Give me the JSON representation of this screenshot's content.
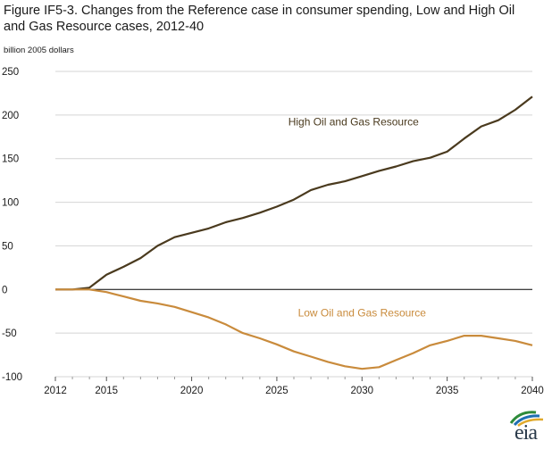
{
  "title": "Figure IF5-3. Changes from the Reference case in consumer spending, Low and High Oil and Gas Resource cases, 2012-40",
  "units": "billion 2005 dollars",
  "logo_text": "eia",
  "chart_data": {
    "type": "line",
    "x_ticks": [
      2012,
      2015,
      2020,
      2025,
      2030,
      2035,
      2040
    ],
    "y_ticks": [
      250,
      200,
      150,
      100,
      50,
      0,
      -50,
      -100
    ],
    "xlim": [
      2012,
      2040
    ],
    "ylim": [
      -100,
      250
    ],
    "grid": true,
    "series": [
      {
        "name": "High Oil and Gas Resource",
        "color": "#4a3a1e",
        "x": [
          2012,
          2013,
          2014,
          2015,
          2016,
          2017,
          2018,
          2019,
          2020,
          2021,
          2022,
          2023,
          2024,
          2025,
          2026,
          2027,
          2028,
          2029,
          2030,
          2031,
          2032,
          2033,
          2034,
          2035,
          2036,
          2037,
          2038,
          2039,
          2040
        ],
        "values": [
          0,
          0,
          2,
          17,
          26,
          36,
          50,
          60,
          65,
          70,
          77,
          82,
          88,
          95,
          103,
          114,
          120,
          124,
          130,
          136,
          141,
          147,
          151,
          158,
          173,
          187,
          194,
          206,
          221
        ]
      },
      {
        "name": "Low Oil and Gas Resource",
        "color": "#c98b3c",
        "x": [
          2012,
          2013,
          2014,
          2015,
          2016,
          2017,
          2018,
          2019,
          2020,
          2021,
          2022,
          2023,
          2024,
          2025,
          2026,
          2027,
          2028,
          2029,
          2030,
          2031,
          2032,
          2033,
          2034,
          2035,
          2036,
          2037,
          2038,
          2039,
          2040
        ],
        "values": [
          0,
          0,
          0,
          -3,
          -8,
          -13,
          -16,
          -20,
          -26,
          -32,
          -40,
          -50,
          -56,
          -63,
          -71,
          -77,
          -83,
          -88,
          -91,
          -89,
          -81,
          -73,
          -64,
          -59,
          -53,
          -53,
          -56,
          -59,
          -64
        ]
      }
    ]
  }
}
